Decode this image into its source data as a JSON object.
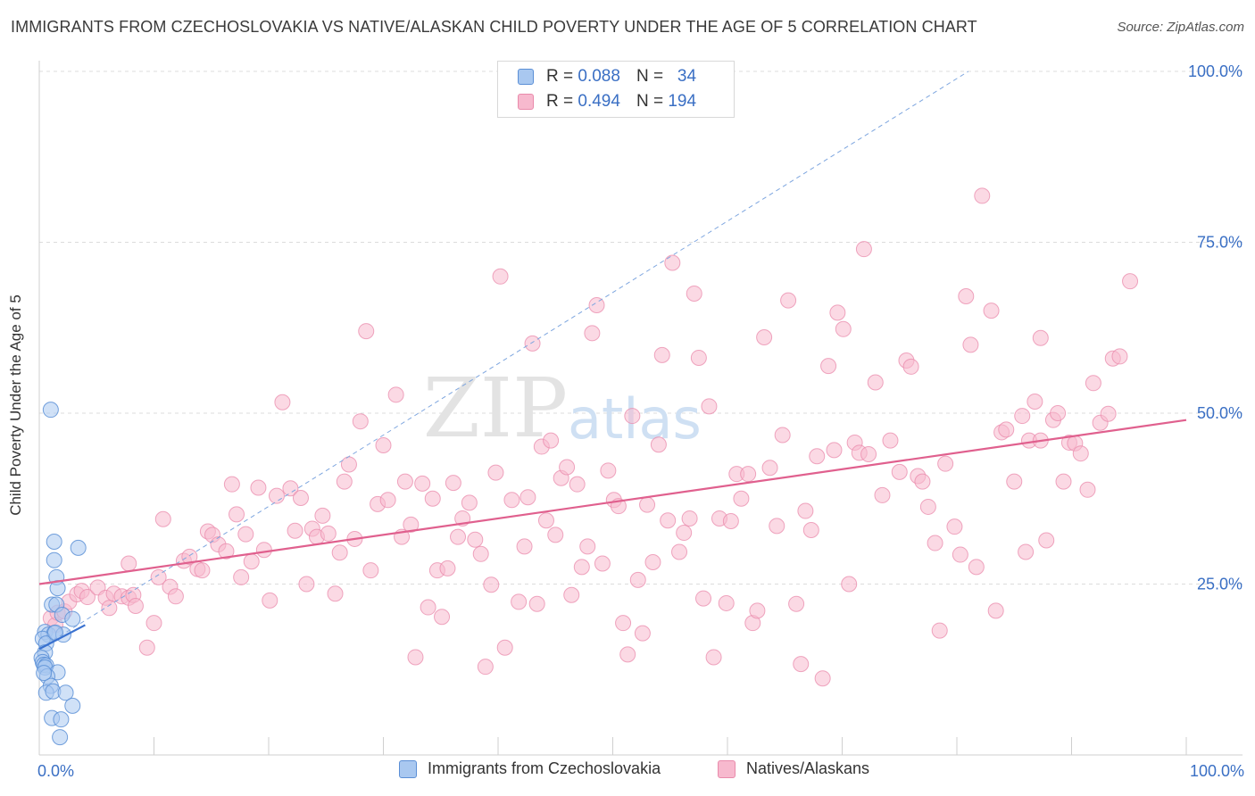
{
  "header": {
    "title": "IMMIGRANTS FROM CZECHOSLOVAKIA VS NATIVE/ALASKAN CHILD POVERTY UNDER THE AGE OF 5 CORRELATION CHART",
    "source": "Source: ZipAtlas.com"
  },
  "watermark": {
    "zip": "ZIP",
    "atlas": "atlas"
  },
  "legend_top": {
    "rows": [
      {
        "r_label": "R =",
        "r_value": "0.088",
        "n_label": "N =",
        "n_value": "34",
        "color": "#a9c8f0"
      },
      {
        "r_label": "R =",
        "r_value": "0.494",
        "n_label": "N =",
        "n_value": "194",
        "color": "#f7b9ce"
      }
    ]
  },
  "legend_bottom": {
    "items": [
      {
        "label": "Immigrants from Czechoslovakia",
        "color": "#a9c8f0"
      },
      {
        "label": "Natives/Alaskans",
        "color": "#f7b9ce"
      }
    ]
  },
  "chart_data": {
    "type": "scatter",
    "title": "IMMIGRANTS FROM CZECHOSLOVAKIA VS NATIVE/ALASKAN CHILD POVERTY UNDER THE AGE OF 5 CORRELATION CHART",
    "xlabel": "",
    "ylabel": "Child Poverty Under the Age of 5",
    "xlim": [
      0,
      100
    ],
    "ylim": [
      0,
      100
    ],
    "x_tick_labels": [
      "0.0%",
      "100.0%"
    ],
    "y_tick_labels": [
      "25.0%",
      "50.0%",
      "75.0%",
      "100.0%"
    ],
    "y_ticks": [
      25,
      50,
      75,
      100
    ],
    "grid": true,
    "colors": {
      "blue_fill": "#a9c8f0",
      "blue_stroke": "#5b8fd6",
      "blue_line": "#3a72d0",
      "pink_fill": "#f7b9ce",
      "pink_stroke": "#e98aab",
      "pink_line": "#e0608e",
      "axis_text": "#3a6fc4"
    },
    "series": [
      {
        "name": "Immigrants from Czechoslovakia",
        "r": 0.088,
        "n": 34,
        "trend": {
          "x": [
            0,
            4
          ],
          "y": [
            15.5,
            19.0
          ]
        },
        "dashed_trend": {
          "x": [
            0,
            81
          ],
          "y": [
            15.5,
            100
          ]
        },
        "points": [
          [
            1.0,
            50.5
          ],
          [
            1.3,
            31.2
          ],
          [
            3.4,
            30.3
          ],
          [
            1.3,
            28.5
          ],
          [
            1.5,
            26.0
          ],
          [
            1.6,
            24.4
          ],
          [
            1.1,
            22.0
          ],
          [
            1.5,
            22.0
          ],
          [
            2.0,
            20.5
          ],
          [
            2.9,
            19.9
          ],
          [
            0.5,
            18.0
          ],
          [
            0.8,
            17.6
          ],
          [
            1.3,
            17.8
          ],
          [
            2.1,
            17.6
          ],
          [
            0.3,
            17.0
          ],
          [
            0.6,
            16.3
          ],
          [
            0.5,
            15.0
          ],
          [
            0.2,
            14.2
          ],
          [
            0.3,
            13.6
          ],
          [
            0.4,
            13.2
          ],
          [
            0.6,
            13.1
          ],
          [
            0.5,
            12.8
          ],
          [
            1.6,
            12.1
          ],
          [
            0.7,
            11.5
          ],
          [
            1.0,
            10.1
          ],
          [
            0.6,
            9.1
          ],
          [
            1.2,
            9.3
          ],
          [
            2.3,
            9.1
          ],
          [
            2.9,
            7.2
          ],
          [
            1.1,
            5.4
          ],
          [
            1.9,
            5.2
          ],
          [
            1.8,
            2.6
          ],
          [
            0.4,
            12.0
          ],
          [
            1.4,
            17.9
          ]
        ]
      },
      {
        "name": "Natives/Alaskans",
        "r": 0.494,
        "n": 194,
        "trend": {
          "x": [
            0,
            100
          ],
          "y": [
            25.0,
            49.0
          ]
        },
        "points": [
          [
            1.0,
            20.0
          ],
          [
            1.4,
            19.0
          ],
          [
            1.6,
            20.8
          ],
          [
            2.2,
            21.0
          ],
          [
            2.6,
            22.4
          ],
          [
            3.3,
            23.5
          ],
          [
            3.7,
            24.0
          ],
          [
            4.2,
            23.1
          ],
          [
            5.1,
            24.5
          ],
          [
            5.8,
            23.0
          ],
          [
            6.1,
            21.5
          ],
          [
            6.5,
            23.6
          ],
          [
            7.2,
            23.2
          ],
          [
            7.8,
            23.0
          ],
          [
            8.2,
            23.4
          ],
          [
            8.4,
            21.8
          ],
          [
            7.8,
            28.0
          ],
          [
            9.4,
            15.7
          ],
          [
            10.0,
            19.3
          ],
          [
            10.4,
            26.0
          ],
          [
            10.8,
            34.5
          ],
          [
            11.4,
            24.6
          ],
          [
            11.9,
            23.2
          ],
          [
            12.6,
            28.4
          ],
          [
            13.1,
            29.0
          ],
          [
            13.8,
            27.2
          ],
          [
            14.2,
            27.0
          ],
          [
            14.7,
            32.7
          ],
          [
            15.1,
            32.2
          ],
          [
            15.6,
            30.8
          ],
          [
            16.3,
            29.8
          ],
          [
            16.8,
            39.6
          ],
          [
            17.2,
            35.2
          ],
          [
            17.6,
            26.0
          ],
          [
            18.0,
            32.3
          ],
          [
            18.5,
            28.3
          ],
          [
            19.1,
            39.1
          ],
          [
            19.6,
            30.0
          ],
          [
            20.1,
            22.6
          ],
          [
            20.7,
            37.9
          ],
          [
            21.2,
            51.6
          ],
          [
            21.9,
            39.0
          ],
          [
            22.3,
            32.8
          ],
          [
            22.8,
            37.6
          ],
          [
            23.3,
            25.0
          ],
          [
            23.8,
            33.1
          ],
          [
            24.2,
            31.9
          ],
          [
            24.7,
            35.0
          ],
          [
            25.2,
            32.4
          ],
          [
            25.8,
            23.6
          ],
          [
            26.2,
            29.6
          ],
          [
            26.6,
            40.0
          ],
          [
            27.0,
            42.5
          ],
          [
            27.5,
            31.6
          ],
          [
            28.0,
            48.8
          ],
          [
            28.5,
            62.0
          ],
          [
            28.9,
            27.0
          ],
          [
            29.5,
            36.7
          ],
          [
            30.0,
            45.3
          ],
          [
            30.4,
            37.3
          ],
          [
            31.1,
            52.7
          ],
          [
            31.6,
            31.9
          ],
          [
            31.9,
            40.0
          ],
          [
            32.4,
            33.7
          ],
          [
            32.8,
            14.3
          ],
          [
            33.4,
            39.7
          ],
          [
            33.9,
            21.6
          ],
          [
            34.3,
            37.5
          ],
          [
            34.7,
            27.0
          ],
          [
            35.1,
            20.2
          ],
          [
            35.6,
            27.3
          ],
          [
            36.1,
            39.8
          ],
          [
            36.5,
            31.9
          ],
          [
            36.9,
            34.6
          ],
          [
            37.5,
            36.9
          ],
          [
            38.0,
            31.5
          ],
          [
            38.5,
            29.4
          ],
          [
            38.9,
            12.9
          ],
          [
            39.4,
            24.9
          ],
          [
            39.8,
            41.3
          ],
          [
            40.2,
            70.0
          ],
          [
            40.6,
            15.7
          ],
          [
            41.2,
            37.3
          ],
          [
            41.8,
            22.4
          ],
          [
            42.3,
            30.5
          ],
          [
            42.6,
            37.7
          ],
          [
            43.0,
            60.2
          ],
          [
            43.4,
            22.1
          ],
          [
            43.8,
            45.1
          ],
          [
            44.2,
            34.3
          ],
          [
            44.6,
            46.0
          ],
          [
            45.0,
            32.2
          ],
          [
            45.5,
            40.5
          ],
          [
            46.0,
            42.1
          ],
          [
            46.4,
            23.4
          ],
          [
            46.9,
            39.6
          ],
          [
            47.3,
            27.5
          ],
          [
            47.8,
            30.5
          ],
          [
            48.2,
            61.7
          ],
          [
            48.6,
            65.8
          ],
          [
            49.1,
            28.0
          ],
          [
            49.6,
            41.6
          ],
          [
            50.1,
            37.3
          ],
          [
            50.5,
            36.4
          ],
          [
            50.9,
            19.3
          ],
          [
            51.3,
            14.7
          ],
          [
            51.7,
            49.6
          ],
          [
            52.2,
            25.6
          ],
          [
            52.6,
            17.8
          ],
          [
            53.0,
            36.6
          ],
          [
            53.5,
            28.2
          ],
          [
            54.0,
            45.4
          ],
          [
            54.3,
            58.5
          ],
          [
            54.8,
            34.3
          ],
          [
            55.2,
            72.0
          ],
          [
            55.8,
            29.7
          ],
          [
            56.2,
            32.5
          ],
          [
            56.7,
            34.6
          ],
          [
            57.1,
            67.5
          ],
          [
            57.5,
            58.1
          ],
          [
            57.9,
            22.9
          ],
          [
            58.4,
            51.0
          ],
          [
            58.8,
            14.3
          ],
          [
            59.3,
            34.6
          ],
          [
            59.9,
            22.2
          ],
          [
            60.3,
            34.2
          ],
          [
            60.8,
            41.1
          ],
          [
            61.2,
            37.5
          ],
          [
            61.8,
            41.1
          ],
          [
            62.2,
            19.3
          ],
          [
            62.6,
            21.1
          ],
          [
            63.2,
            61.1
          ],
          [
            63.7,
            42.0
          ],
          [
            64.3,
            33.5
          ],
          [
            64.8,
            46.8
          ],
          [
            65.3,
            66.5
          ],
          [
            66.0,
            22.1
          ],
          [
            66.4,
            13.3
          ],
          [
            66.8,
            35.7
          ],
          [
            67.3,
            32.9
          ],
          [
            67.8,
            43.7
          ],
          [
            68.3,
            11.2
          ],
          [
            68.8,
            56.9
          ],
          [
            69.3,
            44.6
          ],
          [
            69.6,
            64.7
          ],
          [
            70.1,
            62.3
          ],
          [
            70.6,
            25.0
          ],
          [
            71.1,
            45.7
          ],
          [
            71.5,
            44.2
          ],
          [
            71.9,
            74.0
          ],
          [
            72.3,
            44.0
          ],
          [
            72.9,
            54.5
          ],
          [
            73.5,
            38.0
          ],
          [
            74.2,
            46.0
          ],
          [
            75.0,
            41.4
          ],
          [
            75.6,
            57.7
          ],
          [
            76.0,
            56.8
          ],
          [
            76.6,
            40.8
          ],
          [
            77.0,
            40.0
          ],
          [
            77.5,
            36.3
          ],
          [
            78.1,
            31.0
          ],
          [
            78.5,
            18.2
          ],
          [
            79.0,
            42.6
          ],
          [
            79.8,
            33.4
          ],
          [
            80.3,
            29.3
          ],
          [
            80.8,
            67.1
          ],
          [
            81.2,
            60.0
          ],
          [
            81.7,
            27.5
          ],
          [
            82.2,
            81.8
          ],
          [
            83.0,
            65.0
          ],
          [
            83.4,
            21.1
          ],
          [
            83.9,
            47.2
          ],
          [
            84.3,
            47.6
          ],
          [
            85.0,
            40.0
          ],
          [
            85.7,
            49.6
          ],
          [
            86.3,
            46.0
          ],
          [
            86.8,
            51.7
          ],
          [
            87.3,
            61.0
          ],
          [
            87.8,
            31.4
          ],
          [
            88.4,
            49.0
          ],
          [
            88.8,
            50.0
          ],
          [
            89.3,
            40.0
          ],
          [
            89.8,
            45.7
          ],
          [
            90.3,
            45.6
          ],
          [
            90.8,
            44.1
          ],
          [
            91.4,
            38.8
          ],
          [
            91.9,
            54.4
          ],
          [
            92.5,
            48.6
          ],
          [
            93.2,
            49.9
          ],
          [
            93.6,
            58.0
          ],
          [
            94.2,
            58.3
          ],
          [
            95.1,
            69.3
          ],
          [
            87.3,
            46.0
          ],
          [
            86.0,
            29.7
          ]
        ]
      }
    ]
  }
}
